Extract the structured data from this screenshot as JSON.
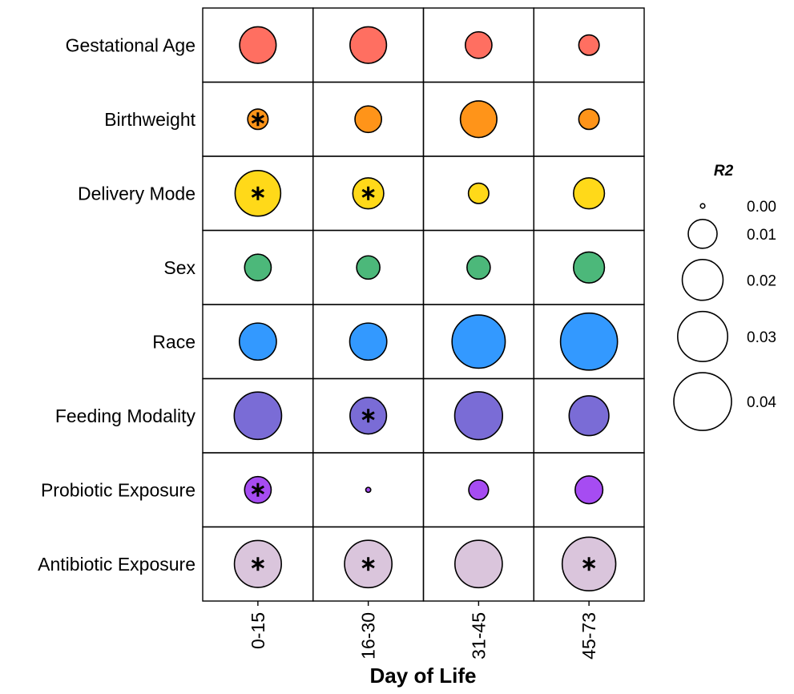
{
  "chart_data": {
    "type": "bubble-grid",
    "title": "",
    "xlabel": "Day of Life",
    "ylabel": "",
    "columns": [
      "0-15",
      "16-30",
      "31-45",
      "45-73"
    ],
    "rows": [
      {
        "label": "Gestational Age",
        "color": "#FF6F61",
        "r2": [
          0.016,
          0.016,
          0.0085,
          0.005
        ],
        "significant": [
          false,
          false,
          false,
          false
        ]
      },
      {
        "label": "Birthweight",
        "color": "#FF9419",
        "r2": [
          0.005,
          0.0085,
          0.016,
          0.005
        ],
        "significant": [
          true,
          false,
          false,
          false
        ]
      },
      {
        "label": "Delivery Mode",
        "color": "#FFD919",
        "r2": [
          0.025,
          0.0115,
          0.005,
          0.0115
        ],
        "significant": [
          true,
          true,
          false,
          false
        ]
      },
      {
        "label": "Sex",
        "color": "#4CB87A",
        "r2": [
          0.0085,
          0.0065,
          0.0065,
          0.0115
        ],
        "significant": [
          false,
          false,
          false,
          false
        ]
      },
      {
        "label": "Race",
        "color": "#3399FF",
        "r2": [
          0.0165,
          0.0165,
          0.034,
          0.039
        ],
        "significant": [
          false,
          false,
          false,
          false
        ]
      },
      {
        "label": "Feeding Modality",
        "color": "#7A6CD6",
        "r2": [
          0.027,
          0.016,
          0.0275,
          0.019
        ],
        "significant": [
          false,
          true,
          false,
          false
        ]
      },
      {
        "label": "Probiotic Exposure",
        "color": "#A64CF2",
        "r2": [
          0.0085,
          0.0003,
          0.0047,
          0.0092
        ],
        "significant": [
          true,
          false,
          false,
          false
        ]
      },
      {
        "label": "Antibiotic Exposure",
        "color": "#DAC5DC",
        "r2": [
          0.0265,
          0.027,
          0.027,
          0.0345
        ],
        "significant": [
          true,
          true,
          false,
          true
        ]
      }
    ],
    "legend": {
      "title": "R2",
      "placement": "right",
      "entries": [
        {
          "label": "0.00",
          "value": 0.0001
        },
        {
          "label": "0.01",
          "value": 0.01
        },
        {
          "label": "0.02",
          "value": 0.02
        },
        {
          "label": "0.03",
          "value": 0.03
        },
        {
          "label": "0.04",
          "value": 0.04
        }
      ]
    },
    "grid": true
  }
}
